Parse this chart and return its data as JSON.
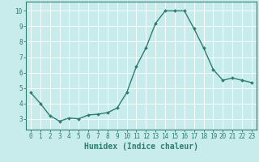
{
  "x": [
    0,
    1,
    2,
    3,
    4,
    5,
    6,
    7,
    8,
    9,
    10,
    11,
    12,
    13,
    14,
    15,
    16,
    17,
    18,
    19,
    20,
    21,
    22,
    23
  ],
  "y": [
    4.7,
    4.0,
    3.2,
    2.85,
    3.05,
    3.0,
    3.25,
    3.3,
    3.4,
    3.7,
    4.7,
    6.4,
    7.6,
    9.2,
    10.0,
    10.0,
    10.0,
    8.85,
    7.6,
    6.2,
    5.5,
    5.65,
    5.5,
    5.35
  ],
  "line_color": "#2e7d6e",
  "marker": "D",
  "marker_size": 2,
  "linewidth": 1.0,
  "xlabel": "Humidex (Indice chaleur)",
  "xlim": [
    -0.5,
    23.5
  ],
  "ylim": [
    2.3,
    10.6
  ],
  "yticks": [
    3,
    4,
    5,
    6,
    7,
    8,
    9,
    10
  ],
  "xticks": [
    0,
    1,
    2,
    3,
    4,
    5,
    6,
    7,
    8,
    9,
    10,
    11,
    12,
    13,
    14,
    15,
    16,
    17,
    18,
    19,
    20,
    21,
    22,
    23
  ],
  "xtick_labels": [
    "0",
    "1",
    "2",
    "3",
    "4",
    "5",
    "6",
    "7",
    "8",
    "9",
    "10",
    "11",
    "12",
    "13",
    "14",
    "15",
    "16",
    "17",
    "18",
    "19",
    "20",
    "21",
    "22",
    "23"
  ],
  "background_color": "#c8ecec",
  "grid_color": "#ffffff",
  "tick_fontsize": 5.5,
  "xlabel_fontsize": 7,
  "text_color": "#2e7d6e",
  "grid_linewidth": 0.6
}
